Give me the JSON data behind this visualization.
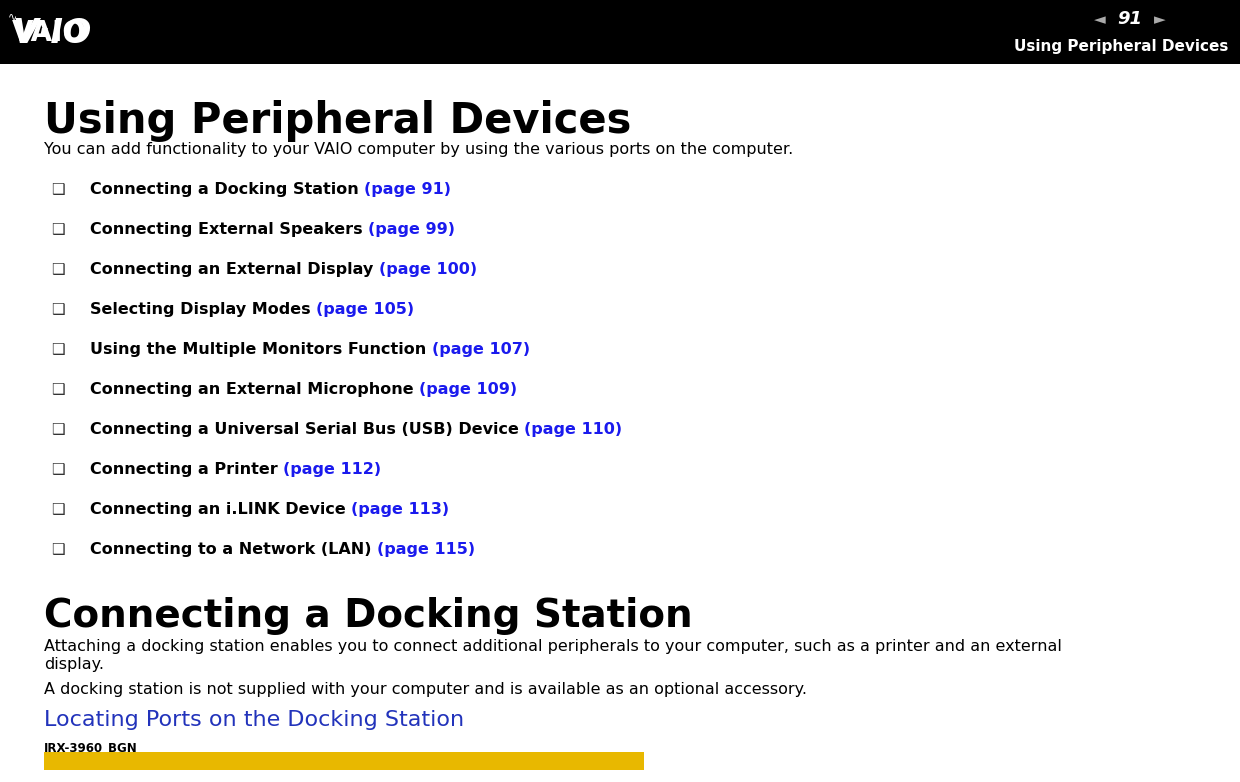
{
  "bg_color": "#ffffff",
  "header_bg": "#000000",
  "header_page_num": "91",
  "header_text_right": "Using Peripheral Devices",
  "header_text_color": "#ffffff",
  "arrow_color": "#aaaaaa",
  "page_title": "Using Peripheral Devices",
  "intro_text": "You can add functionality to your VAIO computer by using the various ports on the computer.",
  "bullet_items": [
    {
      "black_text": "Connecting a Docking Station ",
      "blue_text": "(page 91)"
    },
    {
      "black_text": "Connecting External Speakers ",
      "blue_text": "(page 99)"
    },
    {
      "black_text": "Connecting an External Display ",
      "blue_text": "(page 100)"
    },
    {
      "black_text": "Selecting Display Modes ",
      "blue_text": "(page 105)"
    },
    {
      "black_text": "Using the Multiple Monitors Function ",
      "blue_text": "(page 107)"
    },
    {
      "black_text": "Connecting an External Microphone ",
      "blue_text": "(page 109)"
    },
    {
      "black_text": "Connecting a Universal Serial Bus (USB) Device ",
      "blue_text": "(page 110)"
    },
    {
      "black_text": "Connecting a Printer ",
      "blue_text": "(page 112)"
    },
    {
      "black_text": "Connecting an i.LINK Device ",
      "blue_text": "(page 113)"
    },
    {
      "black_text": "Connecting to a Network (LAN) ",
      "blue_text": "(page 115)"
    }
  ],
  "section2_title": "Connecting a Docking Station",
  "section2_text1": "Attaching a docking station enables you to connect additional peripherals to your computer, such as a printer and an external",
  "section2_text1b": "display.",
  "section2_text2": "A docking station is not supplied with your computer and is available as an optional accessory.",
  "section3_title": "Locating Ports on the Docking Station",
  "section3_color": "#2233bb",
  "irx_label": "IRX-3960_BGN",
  "yellow_bar_color": "#e8b800",
  "vaio_text": "VAIO"
}
